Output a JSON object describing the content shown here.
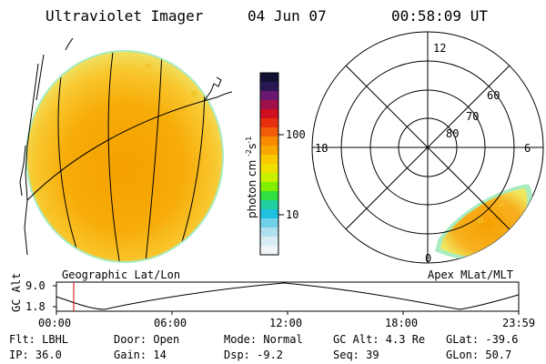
{
  "header": {
    "instrument": "Ultraviolet Imager",
    "date": "04 Jun 07",
    "time": "00:58:09 UT"
  },
  "colorbar": {
    "unit": "photon cm",
    "unit_sup1": "-2",
    "unit_s": "s",
    "unit_sup2": "-1",
    "ticks": [
      "100",
      "10"
    ],
    "colors": [
      "#111133",
      "#2a1855",
      "#6a1870",
      "#a0104a",
      "#d01020",
      "#e83010",
      "#f05c08",
      "#f88a00",
      "#f8a800",
      "#f8c800",
      "#f0e000",
      "#c8f000",
      "#80f000",
      "#30e040",
      "#20d0a0",
      "#20c0e0",
      "#70d0e8",
      "#b0e0f0",
      "#d8ecf4",
      "#f0f4f8"
    ]
  },
  "labels": {
    "geographic": "Geographic Lat/Lon",
    "apex": "Apex MLat/MLT"
  },
  "polar": {
    "mlt": [
      "12",
      "18",
      "6",
      "0"
    ],
    "lat": [
      "60",
      "70",
      "80"
    ]
  },
  "altitude": {
    "axis_label": "GC Alt",
    "y_ticks": [
      "9.0",
      "1.8"
    ],
    "x_ticks": [
      "00:00",
      "06:00",
      "12:00",
      "18:00",
      "23:59"
    ]
  },
  "info": {
    "flt": "Flt: LBHL",
    "ip": "IP: 36.0",
    "door": "Door: Open",
    "gain": "Gain: 14",
    "mode": "Mode: Normal",
    "dsp": "Dsp:   -9.2",
    "gcalt": "GC Alt: 4.3 Re",
    "seq": "Seq: 39",
    "glat": "GLat: -39.6",
    "glon": "GLon:  50.7"
  }
}
